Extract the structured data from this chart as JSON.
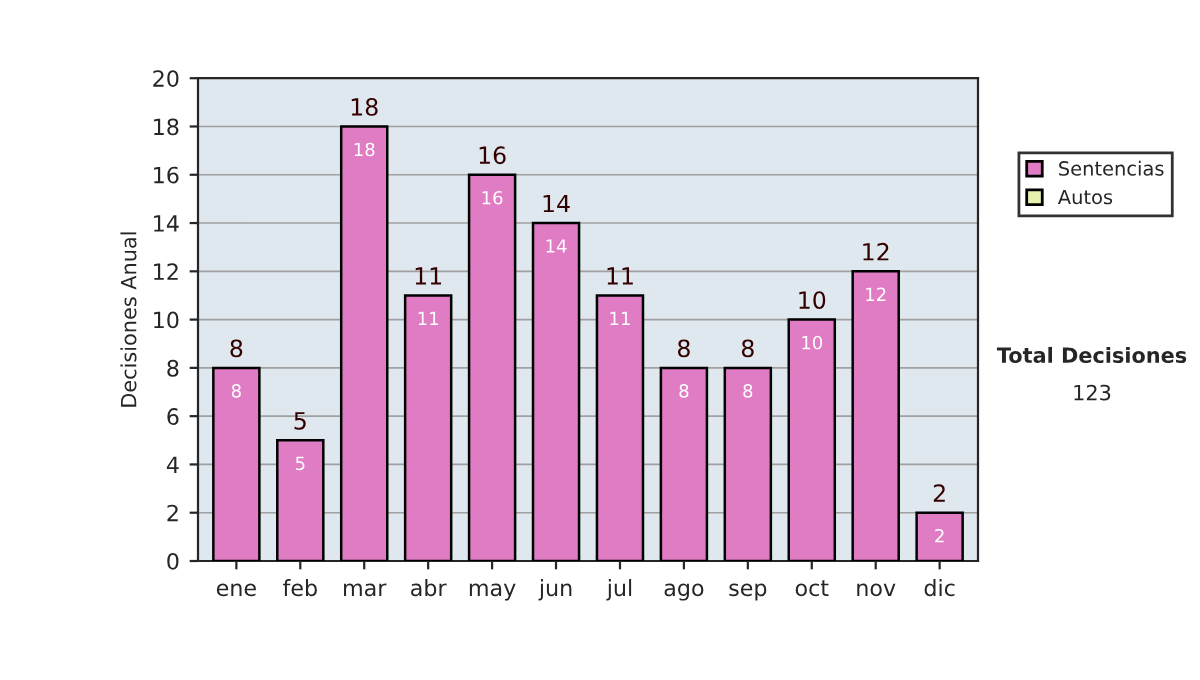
{
  "chart_data": {
    "type": "bar",
    "ylabel": "Decisiones Anual",
    "categories": [
      "ene",
      "feb",
      "mar",
      "abr",
      "may",
      "jun",
      "jul",
      "ago",
      "sep",
      "oct",
      "nov",
      "dic"
    ],
    "series": [
      {
        "name": "Sentencias",
        "color": "#e07cc4",
        "values": [
          8,
          5,
          18,
          11,
          16,
          14,
          11,
          8,
          8,
          10,
          12,
          2
        ]
      },
      {
        "name": "Autos",
        "color": "#e8f2b0",
        "values": [
          null,
          null,
          null,
          null,
          null,
          null,
          null,
          null,
          null,
          null,
          null,
          null
        ]
      }
    ],
    "stacked": true,
    "data_labels": true,
    "totals": [
      "8",
      "5",
      "18",
      "11",
      "16",
      "14",
      "11",
      "8",
      "8",
      "10",
      "12",
      "2"
    ],
    "ylim": [
      0,
      20
    ],
    "yticks": [
      0,
      2,
      4,
      6,
      8,
      10,
      12,
      14,
      16,
      18,
      20
    ],
    "grid": "y",
    "legend": "right",
    "annotations": [
      "Total Decisiones",
      "123"
    ]
  }
}
